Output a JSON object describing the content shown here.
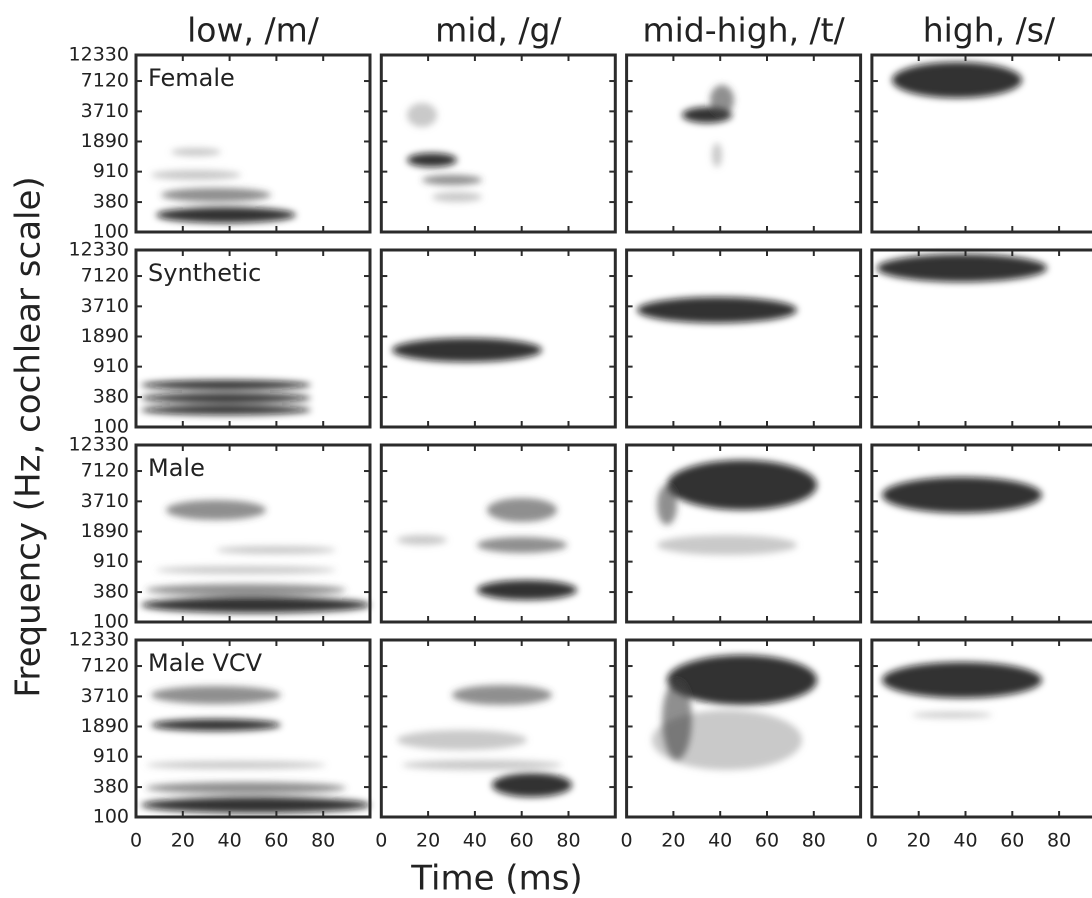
{
  "chart_data": {
    "type": "spectrogram-grid",
    "columns": [
      "low, /m/",
      "mid, /g/",
      "mid-high, /t/",
      "high, /s/"
    ],
    "rows": [
      "Female",
      "Synthetic",
      "Male",
      "Male VCV"
    ],
    "xlabel": "Time (ms)",
    "ylabel": "Frequency (Hz, cochlear scale)",
    "xlim": [
      0,
      100
    ],
    "xticks": [
      0,
      20,
      40,
      60,
      80
    ],
    "ylim": [
      100,
      12330
    ],
    "yticks": [
      100,
      380,
      910,
      1890,
      3710,
      7120,
      12330
    ],
    "yscale": "cochlear",
    "grid": false
  }
}
